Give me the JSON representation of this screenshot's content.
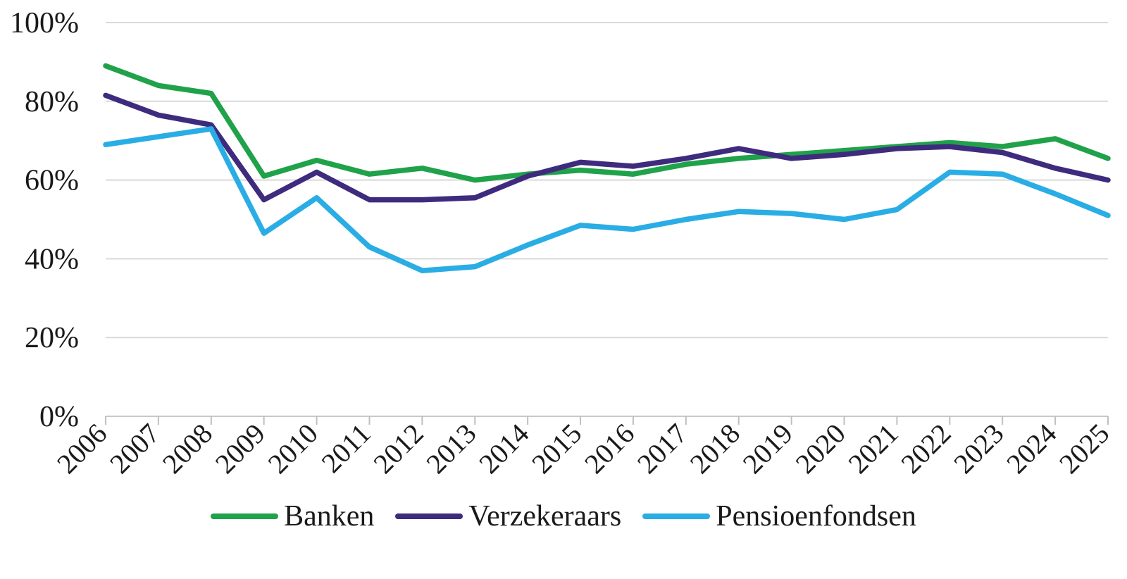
{
  "chart_data": {
    "type": "line",
    "x": [
      2006,
      2007,
      2008,
      2009,
      2010,
      2011,
      2012,
      2013,
      2014,
      2015,
      2016,
      2017,
      2018,
      2019,
      2020,
      2021,
      2022,
      2023,
      2024,
      2025
    ],
    "series": [
      {
        "name": "Banken",
        "color": "#1fa24a",
        "values": [
          89,
          84,
          82,
          61,
          65,
          61.5,
          63,
          60,
          61.5,
          62.5,
          61.5,
          64,
          65.5,
          66.5,
          67.5,
          68.5,
          69.5,
          68.5,
          70.5,
          65.5
        ]
      },
      {
        "name": "Verzekeraars",
        "color": "#3f2b7e",
        "values": [
          81.5,
          76.5,
          74,
          55,
          62,
          55,
          55,
          55.5,
          61,
          64.5,
          63.5,
          65.5,
          68,
          65.5,
          66.5,
          68,
          68.5,
          67,
          63,
          60
        ]
      },
      {
        "name": "Pensioenfondsen",
        "color": "#29ade4",
        "values": [
          69,
          71,
          73,
          46.5,
          55.5,
          43,
          37,
          38,
          43.5,
          48.5,
          47.5,
          50,
          52,
          51.5,
          50,
          52.5,
          62,
          61.5,
          56.5,
          51
        ]
      }
    ],
    "title": "",
    "xlabel": "",
    "ylabel": "",
    "ylim": [
      0,
      100
    ],
    "yticks": [
      {
        "value": 0,
        "label": "0%"
      },
      {
        "value": 20,
        "label": "20%"
      },
      {
        "value": 40,
        "label": "40%"
      },
      {
        "value": 60,
        "label": "60%"
      },
      {
        "value": 80,
        "label": "80%"
      },
      {
        "value": 100,
        "label": "100%"
      }
    ],
    "grid": true,
    "legend_position": "bottom",
    "colors": {
      "gridline": "#d9d9d9",
      "axis_line": "#c8c8c8",
      "tick": "#bfbfbf",
      "text": "#1a1a1a",
      "background": "#ffffff"
    }
  }
}
